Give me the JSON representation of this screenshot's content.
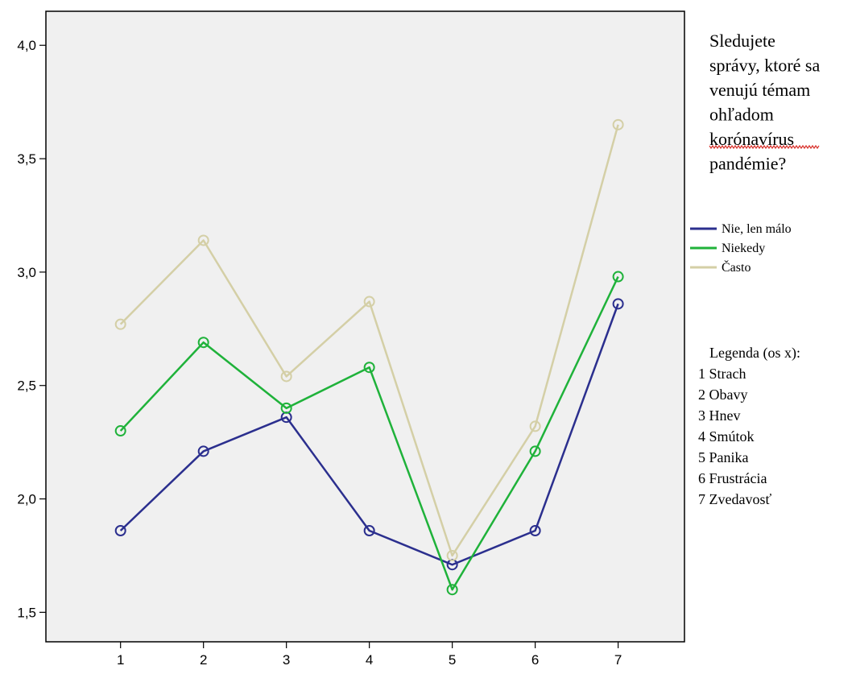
{
  "chart_data": {
    "type": "line",
    "x": [
      1,
      2,
      3,
      4,
      5,
      6,
      7
    ],
    "xticks": [
      "1",
      "2",
      "3",
      "4",
      "5",
      "6",
      "7"
    ],
    "xlim": [
      0.1,
      7.8
    ],
    "ylim": [
      1.37,
      4.15
    ],
    "yticks": [
      "1,5",
      "2,0",
      "2,5",
      "3,0",
      "3,5",
      "4,0"
    ],
    "ytick_values": [
      1.5,
      2.0,
      2.5,
      3.0,
      3.5,
      4.0
    ],
    "grid": false,
    "plot_background": "#f0f0f0",
    "legend_title_lines": [
      "Sledujete",
      "správy, ktoré sa",
      "venujú témam",
      "ohľadom",
      "korónavírus",
      "pandémie?"
    ],
    "series": [
      {
        "name": "Nie, len málo",
        "color": "#2b2f8e",
        "values": [
          1.86,
          2.21,
          2.36,
          1.86,
          1.71,
          1.86,
          2.86
        ]
      },
      {
        "name": "Niekedy",
        "color": "#1fb23a",
        "values": [
          2.3,
          2.69,
          2.4,
          2.58,
          1.6,
          2.21,
          2.98
        ]
      },
      {
        "name": "Často",
        "color": "#d4cfa6",
        "values": [
          2.77,
          3.14,
          2.54,
          2.87,
          1.75,
          2.32,
          3.65
        ]
      }
    ],
    "x_legend": {
      "title": "Legenda (os x):",
      "items": [
        "1 Strach",
        "2 Obavy",
        "3 Hnev",
        "4 Smútok",
        "5 Panika",
        "6 Frustrácia",
        "7 Zvedavosť"
      ]
    }
  }
}
